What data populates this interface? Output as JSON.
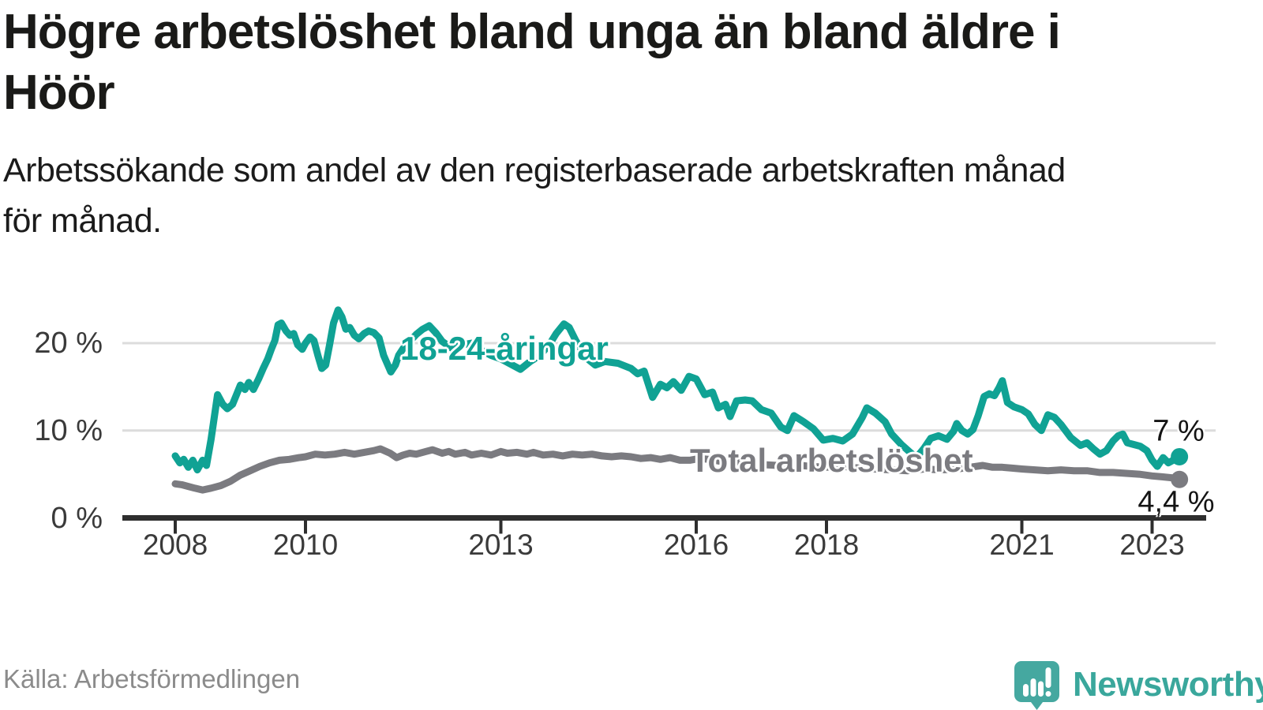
{
  "header": {
    "title_line1": "Högre arbetslöshet bland unga än bland äldre i",
    "title_line2": "Höör",
    "subtitle_line1": "Arbetssökande som andel av den registerbaserade arbetskraften månad",
    "subtitle_line2": "för månad."
  },
  "footer": {
    "source": "Källa: Arbetsförmedlingen",
    "brand": "Newsworthy"
  },
  "colors": {
    "young_line": "#10a294",
    "total_line": "#7b7b80",
    "grid": "#dcdcdc",
    "axis": "#2e2e2e",
    "tick_label": "#3a3a3a",
    "end_label": "#141414",
    "logo_teal": "#45a8a0",
    "logo_text": "#3aa79c"
  },
  "chart_data": {
    "type": "line",
    "title": "Högre arbetslöshet bland unga än bland äldre i Höör",
    "subtitle": "Arbetssökande som andel av den registerbaserade arbetskraften månad för månad.",
    "xlabel": "",
    "ylabel": "",
    "grid": "horizontal",
    "legend_position": "inline-labels",
    "xlim": [
      2007.2,
      2023.9
    ],
    "ylim": [
      0,
      25
    ],
    "x_ticks": [
      2008,
      2010,
      2013,
      2016,
      2018,
      2021,
      2023
    ],
    "x_tick_labels": [
      "2008",
      "2010",
      "2013",
      "2016",
      "2018",
      "2021",
      "2023"
    ],
    "y_ticks": [
      0,
      10,
      20
    ],
    "y_tick_labels": [
      "0 %",
      "10 %",
      "20 %"
    ],
    "series": [
      {
        "name": "18-24-åringar",
        "color": "#10a294",
        "end_label": "7 %",
        "end_value": 7.0,
        "points": [
          [
            2008.0,
            7.1
          ],
          [
            2008.07,
            6.3
          ],
          [
            2008.13,
            6.7
          ],
          [
            2008.2,
            5.8
          ],
          [
            2008.27,
            6.6
          ],
          [
            2008.34,
            5.5
          ],
          [
            2008.42,
            6.6
          ],
          [
            2008.48,
            6.0
          ],
          [
            2008.55,
            9.0
          ],
          [
            2008.65,
            14.1
          ],
          [
            2008.73,
            13.0
          ],
          [
            2008.8,
            12.5
          ],
          [
            2008.88,
            13.0
          ],
          [
            2008.94,
            14.1
          ],
          [
            2009.0,
            15.2
          ],
          [
            2009.07,
            14.7
          ],
          [
            2009.13,
            15.5
          ],
          [
            2009.2,
            14.7
          ],
          [
            2009.28,
            15.9
          ],
          [
            2009.35,
            17.1
          ],
          [
            2009.42,
            18.2
          ],
          [
            2009.48,
            19.4
          ],
          [
            2009.53,
            20.3
          ],
          [
            2009.58,
            22.1
          ],
          [
            2009.63,
            22.3
          ],
          [
            2009.7,
            21.4
          ],
          [
            2009.76,
            20.9
          ],
          [
            2009.82,
            21.1
          ],
          [
            2009.88,
            19.8
          ],
          [
            2009.95,
            19.3
          ],
          [
            2010.0,
            20.0
          ],
          [
            2010.07,
            20.7
          ],
          [
            2010.13,
            20.3
          ],
          [
            2010.19,
            18.6
          ],
          [
            2010.25,
            17.1
          ],
          [
            2010.31,
            17.5
          ],
          [
            2010.37,
            19.8
          ],
          [
            2010.43,
            22.3
          ],
          [
            2010.5,
            23.8
          ],
          [
            2010.56,
            23.0
          ],
          [
            2010.62,
            21.6
          ],
          [
            2010.68,
            21.8
          ],
          [
            2010.75,
            20.9
          ],
          [
            2010.82,
            20.5
          ],
          [
            2010.9,
            21.1
          ],
          [
            2010.97,
            21.4
          ],
          [
            2011.05,
            21.2
          ],
          [
            2011.13,
            20.6
          ],
          [
            2011.2,
            18.6
          ],
          [
            2011.31,
            16.7
          ],
          [
            2011.38,
            17.5
          ],
          [
            2011.43,
            18.6
          ],
          [
            2011.5,
            19.4
          ],
          [
            2011.6,
            20.2
          ],
          [
            2011.7,
            21.0
          ],
          [
            2011.8,
            21.6
          ],
          [
            2011.9,
            22.0
          ],
          [
            2012.0,
            21.2
          ],
          [
            2012.1,
            20.2
          ],
          [
            2012.25,
            19.4
          ],
          [
            2012.4,
            19.8
          ],
          [
            2012.55,
            20.0
          ],
          [
            2012.7,
            19.2
          ],
          [
            2012.85,
            18.6
          ],
          [
            2013.0,
            18.2
          ],
          [
            2013.15,
            17.6
          ],
          [
            2013.3,
            17.0
          ],
          [
            2013.45,
            17.9
          ],
          [
            2013.6,
            18.6
          ],
          [
            2013.75,
            19.9
          ],
          [
            2013.85,
            21.1
          ],
          [
            2013.97,
            22.2
          ],
          [
            2014.05,
            21.8
          ],
          [
            2014.15,
            20.3
          ],
          [
            2014.3,
            18.4
          ],
          [
            2014.45,
            17.5
          ],
          [
            2014.6,
            17.9
          ],
          [
            2014.8,
            17.7
          ],
          [
            2015.0,
            17.1
          ],
          [
            2015.1,
            16.5
          ],
          [
            2015.2,
            16.8
          ],
          [
            2015.33,
            13.8
          ],
          [
            2015.45,
            15.3
          ],
          [
            2015.55,
            14.9
          ],
          [
            2015.65,
            15.6
          ],
          [
            2015.77,
            14.6
          ],
          [
            2015.89,
            16.2
          ],
          [
            2016.0,
            15.9
          ],
          [
            2016.13,
            14.1
          ],
          [
            2016.25,
            14.4
          ],
          [
            2016.34,
            12.6
          ],
          [
            2016.45,
            13.0
          ],
          [
            2016.52,
            11.6
          ],
          [
            2016.62,
            13.4
          ],
          [
            2016.75,
            13.5
          ],
          [
            2016.86,
            13.4
          ],
          [
            2017.0,
            12.4
          ],
          [
            2017.15,
            12.0
          ],
          [
            2017.3,
            10.4
          ],
          [
            2017.4,
            10.0
          ],
          [
            2017.5,
            11.7
          ],
          [
            2017.65,
            11.0
          ],
          [
            2017.8,
            10.2
          ],
          [
            2017.95,
            8.9
          ],
          [
            2018.1,
            9.1
          ],
          [
            2018.25,
            8.8
          ],
          [
            2018.4,
            9.6
          ],
          [
            2018.55,
            11.5
          ],
          [
            2018.62,
            12.6
          ],
          [
            2018.75,
            12.0
          ],
          [
            2018.9,
            11.0
          ],
          [
            2019.0,
            9.6
          ],
          [
            2019.15,
            8.4
          ],
          [
            2019.3,
            7.4
          ],
          [
            2019.38,
            6.9
          ],
          [
            2019.5,
            8.0
          ],
          [
            2019.6,
            9.1
          ],
          [
            2019.72,
            9.4
          ],
          [
            2019.85,
            9.0
          ],
          [
            2019.95,
            9.9
          ],
          [
            2020.0,
            10.8
          ],
          [
            2020.08,
            10.0
          ],
          [
            2020.17,
            9.6
          ],
          [
            2020.25,
            10.1
          ],
          [
            2020.33,
            11.7
          ],
          [
            2020.42,
            13.9
          ],
          [
            2020.5,
            14.2
          ],
          [
            2020.58,
            14.0
          ],
          [
            2020.65,
            14.9
          ],
          [
            2020.7,
            15.7
          ],
          [
            2020.78,
            13.2
          ],
          [
            2020.88,
            12.7
          ],
          [
            2021.0,
            12.4
          ],
          [
            2021.1,
            11.9
          ],
          [
            2021.2,
            10.7
          ],
          [
            2021.3,
            10.0
          ],
          [
            2021.4,
            11.8
          ],
          [
            2021.5,
            11.5
          ],
          [
            2021.6,
            10.7
          ],
          [
            2021.75,
            9.2
          ],
          [
            2021.9,
            8.3
          ],
          [
            2022.0,
            8.6
          ],
          [
            2022.1,
            7.9
          ],
          [
            2022.2,
            7.3
          ],
          [
            2022.3,
            7.7
          ],
          [
            2022.4,
            8.8
          ],
          [
            2022.48,
            9.4
          ],
          [
            2022.55,
            9.6
          ],
          [
            2022.62,
            8.6
          ],
          [
            2022.72,
            8.4
          ],
          [
            2022.82,
            8.2
          ],
          [
            2022.92,
            7.7
          ],
          [
            2023.0,
            6.6
          ],
          [
            2023.08,
            5.9
          ],
          [
            2023.17,
            6.9
          ],
          [
            2023.25,
            6.3
          ],
          [
            2023.42,
            7.0
          ]
        ]
      },
      {
        "name": "Total arbetslöshet",
        "color": "#7b7b80",
        "end_label": "4,4 %",
        "end_value": 4.4,
        "points": [
          [
            2008.0,
            3.9
          ],
          [
            2008.1,
            3.8
          ],
          [
            2008.2,
            3.6
          ],
          [
            2008.3,
            3.4
          ],
          [
            2008.42,
            3.2
          ],
          [
            2008.55,
            3.4
          ],
          [
            2008.7,
            3.7
          ],
          [
            2008.85,
            4.2
          ],
          [
            2009.0,
            4.9
          ],
          [
            2009.15,
            5.4
          ],
          [
            2009.3,
            5.9
          ],
          [
            2009.45,
            6.3
          ],
          [
            2009.6,
            6.6
          ],
          [
            2009.75,
            6.7
          ],
          [
            2009.9,
            6.9
          ],
          [
            2010.0,
            7.0
          ],
          [
            2010.15,
            7.3
          ],
          [
            2010.3,
            7.2
          ],
          [
            2010.45,
            7.3
          ],
          [
            2010.6,
            7.5
          ],
          [
            2010.75,
            7.3
          ],
          [
            2010.9,
            7.5
          ],
          [
            2011.05,
            7.7
          ],
          [
            2011.15,
            7.9
          ],
          [
            2011.3,
            7.4
          ],
          [
            2011.4,
            6.9
          ],
          [
            2011.5,
            7.2
          ],
          [
            2011.6,
            7.4
          ],
          [
            2011.7,
            7.3
          ],
          [
            2011.85,
            7.6
          ],
          [
            2011.95,
            7.8
          ],
          [
            2012.1,
            7.4
          ],
          [
            2012.2,
            7.6
          ],
          [
            2012.3,
            7.3
          ],
          [
            2012.45,
            7.5
          ],
          [
            2012.55,
            7.2
          ],
          [
            2012.7,
            7.4
          ],
          [
            2012.85,
            7.2
          ],
          [
            2013.0,
            7.6
          ],
          [
            2013.1,
            7.4
          ],
          [
            2013.25,
            7.5
          ],
          [
            2013.4,
            7.3
          ],
          [
            2013.5,
            7.5
          ],
          [
            2013.65,
            7.2
          ],
          [
            2013.8,
            7.3
          ],
          [
            2013.95,
            7.1
          ],
          [
            2014.1,
            7.3
          ],
          [
            2014.25,
            7.2
          ],
          [
            2014.4,
            7.3
          ],
          [
            2014.55,
            7.1
          ],
          [
            2014.7,
            7.0
          ],
          [
            2014.85,
            7.1
          ],
          [
            2015.0,
            7.0
          ],
          [
            2015.15,
            6.8
          ],
          [
            2015.3,
            6.9
          ],
          [
            2015.45,
            6.7
          ],
          [
            2015.6,
            6.9
          ],
          [
            2015.75,
            6.6
          ],
          [
            2015.9,
            6.6
          ],
          [
            2016.05,
            6.8
          ],
          [
            2016.2,
            6.7
          ],
          [
            2016.35,
            6.5
          ],
          [
            2016.5,
            6.4
          ],
          [
            2016.65,
            6.4
          ],
          [
            2016.8,
            6.3
          ],
          [
            2017.0,
            6.1
          ],
          [
            2017.25,
            6.0
          ],
          [
            2017.5,
            6.1
          ],
          [
            2017.75,
            5.9
          ],
          [
            2018.0,
            5.8
          ],
          [
            2018.25,
            5.9
          ],
          [
            2018.5,
            5.7
          ],
          [
            2018.75,
            5.6
          ],
          [
            2019.0,
            5.5
          ],
          [
            2019.25,
            5.4
          ],
          [
            2019.5,
            5.6
          ],
          [
            2019.75,
            5.5
          ],
          [
            2020.0,
            5.6
          ],
          [
            2020.2,
            5.8
          ],
          [
            2020.4,
            6.0
          ],
          [
            2020.55,
            5.8
          ],
          [
            2020.7,
            5.8
          ],
          [
            2020.85,
            5.7
          ],
          [
            2021.0,
            5.6
          ],
          [
            2021.2,
            5.5
          ],
          [
            2021.4,
            5.4
          ],
          [
            2021.6,
            5.5
          ],
          [
            2021.8,
            5.4
          ],
          [
            2022.0,
            5.4
          ],
          [
            2022.2,
            5.2
          ],
          [
            2022.4,
            5.2
          ],
          [
            2022.6,
            5.1
          ],
          [
            2022.8,
            5.0
          ],
          [
            2023.0,
            4.8
          ],
          [
            2023.15,
            4.7
          ],
          [
            2023.3,
            4.6
          ],
          [
            2023.42,
            4.4
          ]
        ]
      }
    ]
  }
}
